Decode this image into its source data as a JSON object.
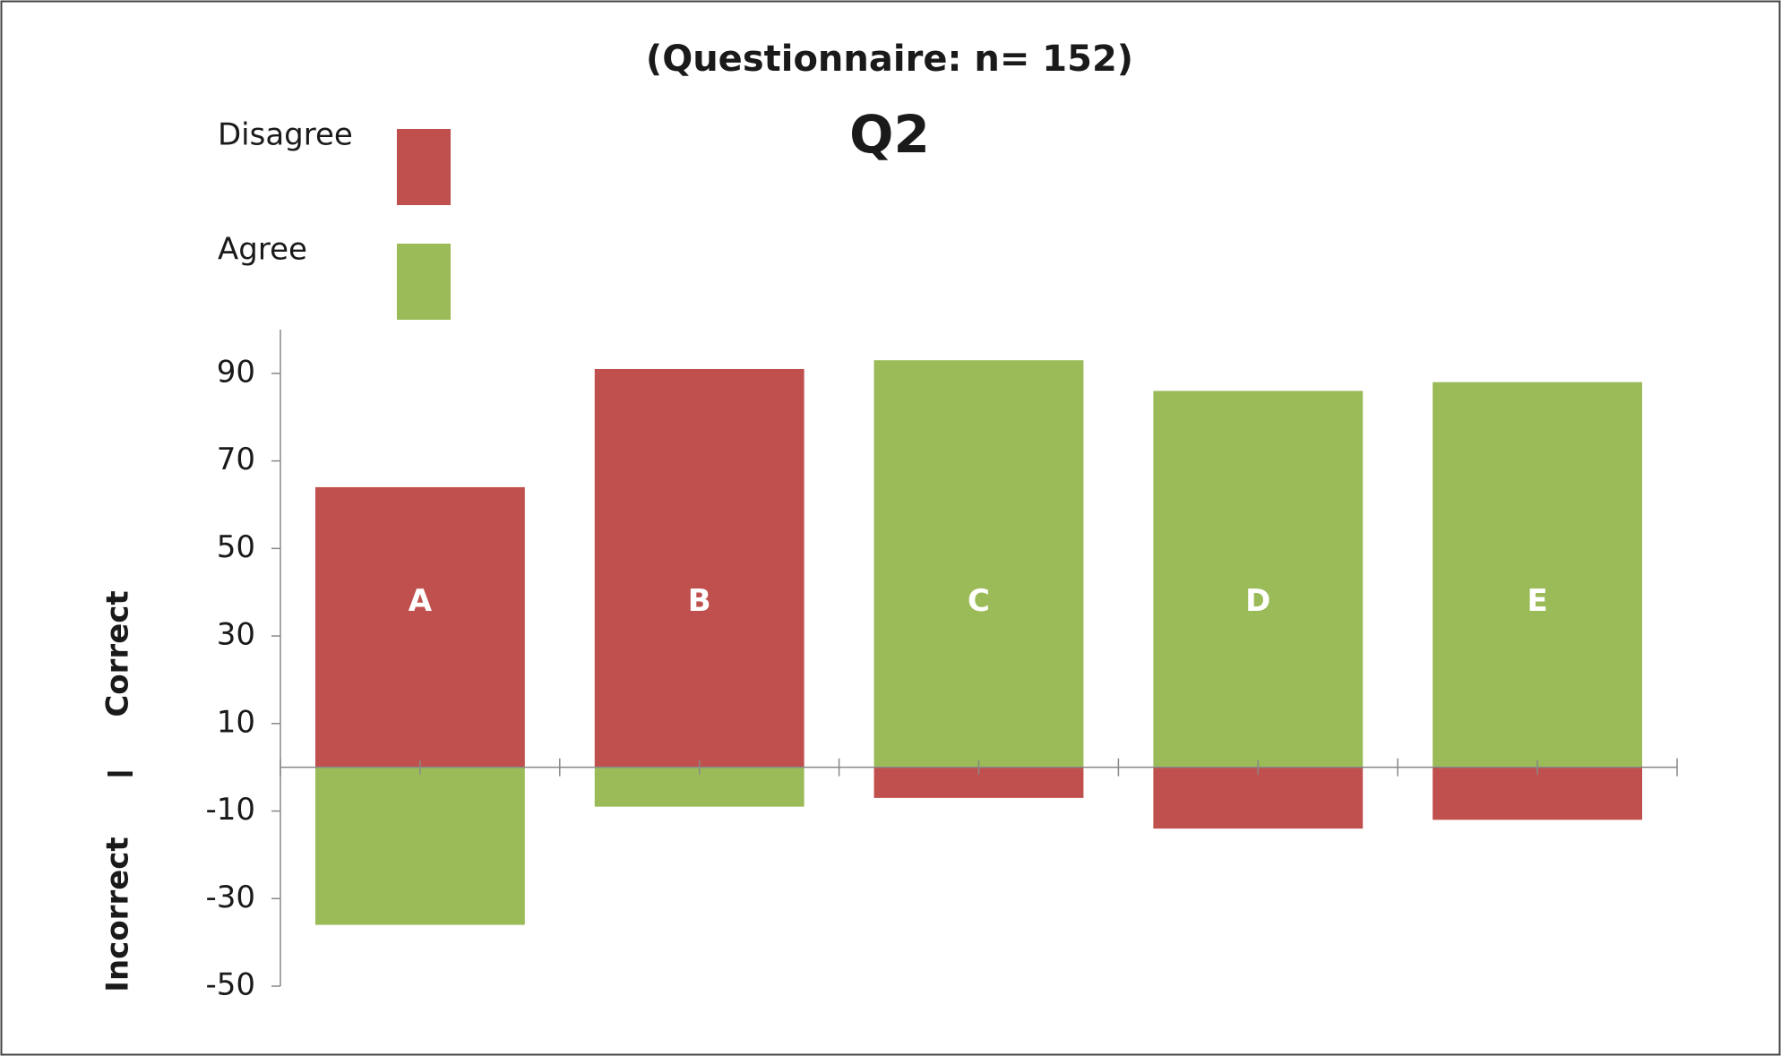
{
  "chart_data": {
    "type": "diverging-bar",
    "title": "Q2",
    "subtitle": "(Questionnaire: n= 152)",
    "categories": [
      "A",
      "B",
      "C",
      "D",
      "E"
    ],
    "series": [
      {
        "name": "Disagree",
        "color": "#c0504d",
        "values": [
          64,
          91,
          -7,
          -14,
          -12
        ]
      },
      {
        "name": "Agree",
        "color": "#9bbb59",
        "values": [
          -36,
          -9,
          93,
          86,
          88
        ]
      }
    ],
    "y_labels": {
      "positive": "Correct",
      "negative": "Incorrect"
    },
    "ylim": [
      -50,
      100
    ],
    "yticks": [
      90,
      70,
      50,
      30,
      10,
      -10,
      -30,
      -50
    ],
    "legend": "top-left",
    "grid": false
  }
}
